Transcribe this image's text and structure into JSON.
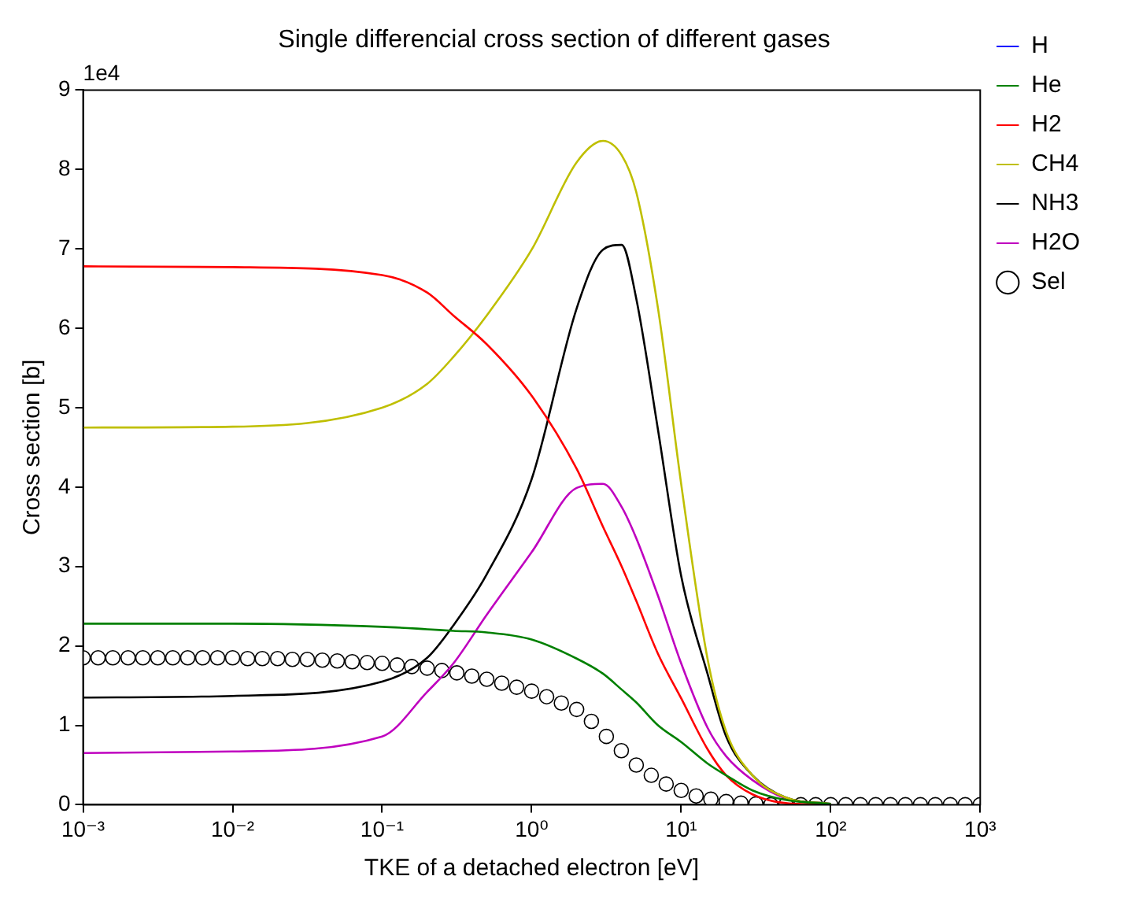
{
  "chart_data": {
    "type": "line",
    "title": "Single differencial cross section of different gases",
    "xlabel": "TKE of a detached electron [eV]",
    "ylabel": "Cross section [b]",
    "annotations": [
      "1e4"
    ],
    "log": "x",
    "grid": false,
    "legend": "right",
    "line_style": "solid",
    "marker": "none",
    "xlim": [
      0.001,
      1000
    ],
    "xticks": [
      {
        "value": 0.001,
        "label": "10⁻³"
      },
      {
        "value": 0.01,
        "label": "10⁻²"
      },
      {
        "value": 0.1,
        "label": "10⁻¹"
      },
      {
        "value": 1,
        "label": "10⁰"
      },
      {
        "value": 10,
        "label": "10¹"
      },
      {
        "value": 100,
        "label": "10²"
      },
      {
        "value": 1000,
        "label": "10³"
      }
    ],
    "ylim": [
      0,
      9
    ],
    "yticks": [
      0,
      1,
      2,
      3,
      4,
      5,
      6,
      7,
      8,
      9
    ],
    "x": [
      0.001,
      0.01,
      0.1,
      0.2,
      0.3,
      0.5,
      1,
      2,
      3,
      4,
      5,
      7,
      10,
      15,
      20,
      30,
      50,
      100
    ],
    "series": [
      {
        "name": "H",
        "color": "#0000ff",
        "values": [
          null,
          null,
          null,
          null,
          null,
          null,
          null,
          null,
          null,
          null,
          null,
          null,
          null,
          null,
          null,
          null,
          null,
          null
        ]
      },
      {
        "name": "He",
        "color": "#008000",
        "values": [
          2.28,
          2.28,
          2.24,
          2.21,
          2.19,
          2.17,
          2.08,
          1.84,
          1.65,
          1.45,
          1.29,
          1.0,
          0.79,
          0.52,
          0.37,
          0.18,
          0.06,
          0.01
        ]
      },
      {
        "name": "H2",
        "color": "#ff0000",
        "values": [
          6.78,
          6.77,
          6.67,
          6.45,
          6.16,
          5.8,
          5.15,
          4.23,
          3.5,
          3.0,
          2.57,
          1.9,
          1.34,
          0.7,
          0.37,
          0.13,
          0.02,
          0
        ]
      },
      {
        "name": "CH4",
        "color": "#bfbf00",
        "values": [
          4.75,
          4.76,
          5.0,
          5.3,
          5.64,
          6.16,
          6.99,
          8.09,
          8.36,
          8.18,
          7.72,
          6.25,
          4.04,
          1.84,
          0.92,
          0.37,
          0.09,
          0.01
        ]
      },
      {
        "name": "NH3",
        "color": "#000000",
        "values": [
          1.35,
          1.37,
          1.55,
          1.85,
          2.26,
          2.9,
          4.1,
          6.25,
          6.99,
          7.05,
          6.38,
          4.72,
          2.88,
          1.65,
          0.86,
          0.37,
          0.09,
          0.01
        ]
      },
      {
        "name": "H2O",
        "color": "#bf00bf",
        "values": [
          0.65,
          0.67,
          0.86,
          1.42,
          1.78,
          2.39,
          3.18,
          3.99,
          4.04,
          3.75,
          3.36,
          2.63,
          1.78,
          0.97,
          0.61,
          0.31,
          0.08,
          0.01
        ]
      },
      {
        "name": "Sel",
        "type": "scatter",
        "marker": "circle",
        "color": "#000000",
        "x": [
          0.001,
          0.00126,
          0.00158,
          0.002,
          0.00251,
          0.00316,
          0.00398,
          0.00501,
          0.00631,
          0.00794,
          0.01,
          0.0126,
          0.0158,
          0.02,
          0.0251,
          0.0316,
          0.0398,
          0.0501,
          0.0631,
          0.0794,
          0.1,
          0.126,
          0.158,
          0.2,
          0.251,
          0.316,
          0.398,
          0.501,
          0.631,
          0.794,
          1,
          1.26,
          1.58,
          2,
          2.51,
          3.16,
          3.98,
          5.01,
          6.31,
          7.94,
          10,
          12.6,
          15.8,
          20,
          25.1,
          31.6,
          39.8,
          50.1,
          63.1,
          79.4,
          100,
          126,
          158,
          200,
          251,
          316,
          398,
          501,
          631,
          794,
          1000
        ],
        "values": [
          1.85,
          1.85,
          1.85,
          1.85,
          1.85,
          1.85,
          1.85,
          1.85,
          1.85,
          1.85,
          1.85,
          1.84,
          1.84,
          1.84,
          1.83,
          1.83,
          1.82,
          1.81,
          1.8,
          1.79,
          1.78,
          1.76,
          1.74,
          1.72,
          1.69,
          1.66,
          1.62,
          1.58,
          1.53,
          1.48,
          1.43,
          1.36,
          1.28,
          1.2,
          1.05,
          0.86,
          0.68,
          0.5,
          0.37,
          0.26,
          0.18,
          0.11,
          0.07,
          0.04,
          0.02,
          0.01,
          0,
          0,
          0,
          0,
          0,
          0,
          0,
          0,
          0,
          0,
          0,
          0,
          0,
          0,
          0
        ]
      }
    ]
  }
}
